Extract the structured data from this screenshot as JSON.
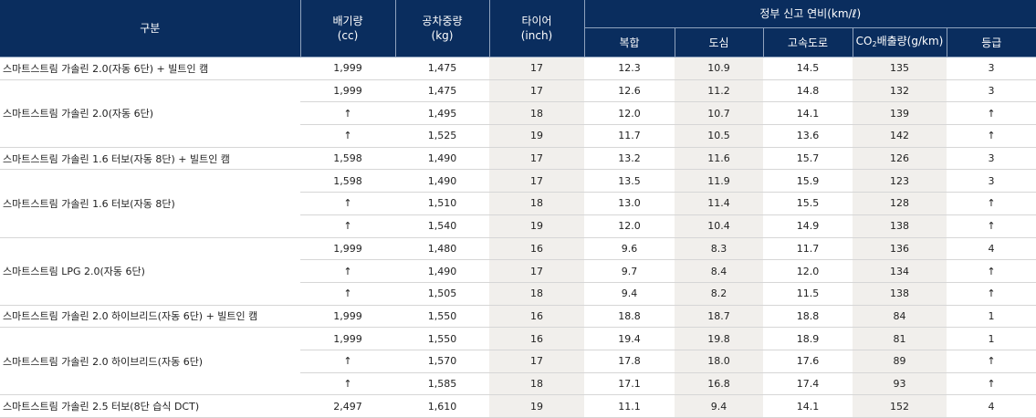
{
  "headers": {
    "category": "구분",
    "displacement": [
      "배기량",
      "(cc)"
    ],
    "weight": [
      "공차중량",
      "(kg)"
    ],
    "tire": [
      "타이어",
      "(inch)"
    ],
    "fuel_group": "정부 신고 연비(km/ℓ)",
    "combined": "복합",
    "city": "도심",
    "highway": "고속도로",
    "co2": {
      "pre": "CO",
      "sub": "2",
      "post": "배출량(g/km)"
    },
    "grade": "등급"
  },
  "groups": [
    {
      "name": "스마트스트림 가솔린 2.0(자동 6단) + 빌트인 캠",
      "rows": [
        {
          "cc": "1,999",
          "kg": "1,475",
          "tire": "17",
          "combined": "12.3",
          "city": "10.9",
          "highway": "14.5",
          "co2": "135",
          "grade": "3"
        }
      ]
    },
    {
      "name": "스마트스트림 가솔린 2.0(자동 6단)",
      "rows": [
        {
          "cc": "1,999",
          "kg": "1,475",
          "tire": "17",
          "combined": "12.6",
          "city": "11.2",
          "highway": "14.8",
          "co2": "132",
          "grade": "3"
        },
        {
          "cc": "↑",
          "kg": "1,495",
          "tire": "18",
          "combined": "12.0",
          "city": "10.7",
          "highway": "14.1",
          "co2": "139",
          "grade": "↑"
        },
        {
          "cc": "↑",
          "kg": "1,525",
          "tire": "19",
          "combined": "11.7",
          "city": "10.5",
          "highway": "13.6",
          "co2": "142",
          "grade": "↑"
        }
      ]
    },
    {
      "name": "스마트스트림 가솔린 1.6 터보(자동 8단) + 빌트인 캠",
      "rows": [
        {
          "cc": "1,598",
          "kg": "1,490",
          "tire": "17",
          "combined": "13.2",
          "city": "11.6",
          "highway": "15.7",
          "co2": "126",
          "grade": "3"
        }
      ]
    },
    {
      "name": "스마트스트림 가솔린 1.6 터보(자동 8단)",
      "rows": [
        {
          "cc": "1,598",
          "kg": "1,490",
          "tire": "17",
          "combined": "13.5",
          "city": "11.9",
          "highway": "15.9",
          "co2": "123",
          "grade": "3"
        },
        {
          "cc": "↑",
          "kg": "1,510",
          "tire": "18",
          "combined": "13.0",
          "city": "11.4",
          "highway": "15.5",
          "co2": "128",
          "grade": "↑"
        },
        {
          "cc": "↑",
          "kg": "1,540",
          "tire": "19",
          "combined": "12.0",
          "city": "10.4",
          "highway": "14.9",
          "co2": "138",
          "grade": "↑"
        }
      ]
    },
    {
      "name": "스마트스트림 LPG 2.0(자동 6단)",
      "rows": [
        {
          "cc": "1,999",
          "kg": "1,480",
          "tire": "16",
          "combined": "9.6",
          "city": "8.3",
          "highway": "11.7",
          "co2": "136",
          "grade": "4"
        },
        {
          "cc": "↑",
          "kg": "1,490",
          "tire": "17",
          "combined": "9.7",
          "city": "8.4",
          "highway": "12.0",
          "co2": "134",
          "grade": "↑"
        },
        {
          "cc": "↑",
          "kg": "1,505",
          "tire": "18",
          "combined": "9.4",
          "city": "8.2",
          "highway": "11.5",
          "co2": "138",
          "grade": "↑"
        }
      ]
    },
    {
      "name": "스마트스트림 가솔린 2.0 하이브리드(자동 6단) + 빌트인 캠",
      "rows": [
        {
          "cc": "1,999",
          "kg": "1,550",
          "tire": "16",
          "combined": "18.8",
          "city": "18.7",
          "highway": "18.8",
          "co2": "84",
          "grade": "1"
        }
      ]
    },
    {
      "name": "스마트스트림 가솔린 2.0 하이브리드(자동 6단)",
      "rows": [
        {
          "cc": "1,999",
          "kg": "1,550",
          "tire": "16",
          "combined": "19.4",
          "city": "19.8",
          "highway": "18.9",
          "co2": "81",
          "grade": "1"
        },
        {
          "cc": "↑",
          "kg": "1,570",
          "tire": "17",
          "combined": "17.8",
          "city": "18.0",
          "highway": "17.6",
          "co2": "89",
          "grade": "↑"
        },
        {
          "cc": "↑",
          "kg": "1,585",
          "tire": "18",
          "combined": "17.1",
          "city": "16.8",
          "highway": "17.4",
          "co2": "93",
          "grade": "↑"
        }
      ]
    },
    {
      "name": "스마트스트림 가솔린 2.5 터보(8단 습식 DCT)",
      "rows": [
        {
          "cc": "2,497",
          "kg": "1,610",
          "tire": "19",
          "combined": "11.1",
          "city": "9.4",
          "highway": "14.1",
          "co2": "152",
          "grade": "4"
        }
      ]
    }
  ]
}
